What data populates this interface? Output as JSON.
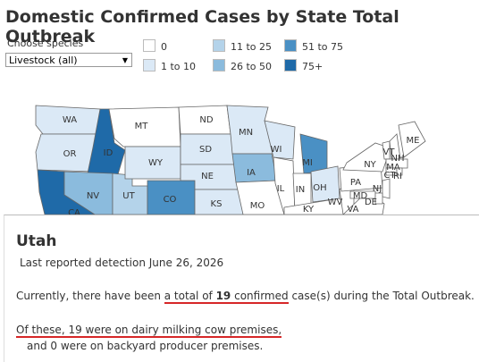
{
  "header": {
    "title": "Domestic Confirmed Cases by State Total Outbreak"
  },
  "filter": {
    "label": "Choose species",
    "value": "Livestock (all)"
  },
  "legend": [
    {
      "label": "0",
      "color": "#ffffff"
    },
    {
      "label": "1 to 10",
      "color": "#dbe9f6"
    },
    {
      "label": "11 to 25",
      "color": "#b4d3ea"
    },
    {
      "label": "26 to 50",
      "color": "#8bbbdd"
    },
    {
      "label": "51 to 75",
      "color": "#4a90c4"
    },
    {
      "label": "75+",
      "color": "#1f6aa8"
    }
  ],
  "states": [
    {
      "label": "WA",
      "color": "#dbe9f6"
    },
    {
      "label": "OR",
      "color": "#dbe9f6"
    },
    {
      "label": "CA",
      "color": "#1f6aa8"
    },
    {
      "label": "ID",
      "color": "#1f6aa8"
    },
    {
      "label": "NV",
      "color": "#8bbbdd"
    },
    {
      "label": "UT",
      "color": "#b4d3ea"
    },
    {
      "label": "CO",
      "color": "#4a90c4"
    },
    {
      "label": "MT",
      "color": "#ffffff"
    },
    {
      "label": "WY",
      "color": "#dbe9f6"
    },
    {
      "label": "ND",
      "color": "#ffffff"
    },
    {
      "label": "SD",
      "color": "#dbe9f6"
    },
    {
      "label": "NE",
      "color": "#dbe9f6"
    },
    {
      "label": "KS",
      "color": "#dbe9f6"
    },
    {
      "label": "MN",
      "color": "#dbe9f6"
    },
    {
      "label": "IA",
      "color": "#8bbbdd"
    },
    {
      "label": "MO",
      "color": "#ffffff"
    },
    {
      "label": "WI",
      "color": "#dbe9f6"
    },
    {
      "label": "IL",
      "color": "#ffffff"
    },
    {
      "label": "MI",
      "color": "#4a90c4"
    },
    {
      "label": "IN",
      "color": "#ffffff"
    },
    {
      "label": "OH",
      "color": "#dbe9f6"
    },
    {
      "label": "KY",
      "color": "#ffffff"
    },
    {
      "label": "WV",
      "color": "#ffffff"
    },
    {
      "label": "VA",
      "color": "#ffffff"
    },
    {
      "label": "PA",
      "color": "#ffffff"
    },
    {
      "label": "NY",
      "color": "#ffffff"
    },
    {
      "label": "VT",
      "color": "#ffffff"
    },
    {
      "label": "NH",
      "color": "#ffffff"
    },
    {
      "label": "ME",
      "color": "#ffffff"
    },
    {
      "label": "MA",
      "color": "#ffffff"
    },
    {
      "label": "CT",
      "color": "#ffffff"
    },
    {
      "label": "RI",
      "color": "#ffffff"
    },
    {
      "label": "NJ",
      "color": "#ffffff"
    },
    {
      "label": "MD",
      "color": "#ffffff"
    },
    {
      "label": "DE",
      "color": "#ffffff"
    }
  ],
  "tooltip": {
    "title": "Utah",
    "detail": "Last reported detection June 26, 2026",
    "summary": [
      "Currently, there have been ",
      "a total of ",
      "19",
      " confirmed",
      " case(s) during the Total Outbreak."
    ],
    "breakdown": [
      "Of these, 19 were on dairy milking cow premises,",
      "and 0 were on backyard producer premises."
    ]
  }
}
